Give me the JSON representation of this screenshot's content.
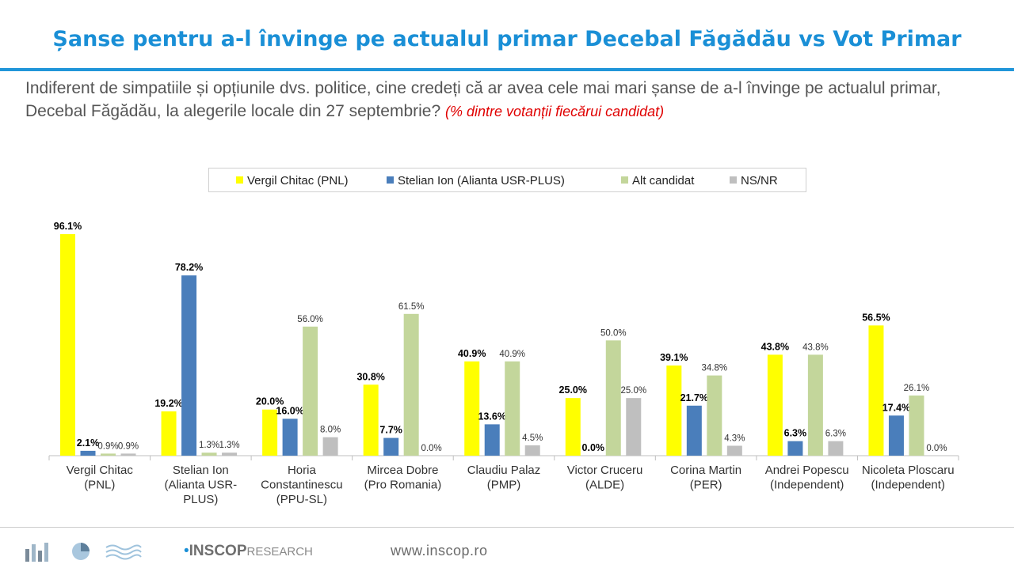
{
  "title": "Șanse pentru a-l învinge pe actualul primar Decebal Făgădău vs Vot Primar",
  "question": "Indiferent de simpatiile și opțiunile dvs. politice, cine credeți că ar avea cele mai mari șanse de a-l învinge pe actualul primar, Decebal Făgădău, la alegerile locale din 27 septembrie?",
  "question_note": "(% dintre votanții fiecărui candidat)",
  "footer": {
    "website": "www.inscop.ro",
    "logo_brand": "INSCOP",
    "logo_suffix": "RESEARCH"
  },
  "colors": {
    "title": "#1a8fd6",
    "rule": "#2196d9",
    "note": "#e00000"
  },
  "chart_data": {
    "type": "bar",
    "legend_position": "top",
    "grid": false,
    "ylim": [
      0,
      100
    ],
    "categories": [
      [
        "Vergil Chitac",
        "(PNL)"
      ],
      [
        "Stelian Ion",
        "(Alianta USR-",
        "PLUS)"
      ],
      [
        "Horia",
        "Constantinescu",
        "(PPU-SL)"
      ],
      [
        "Mircea Dobre",
        "(Pro Romania)"
      ],
      [
        "Claudiu Palaz",
        "(PMP)"
      ],
      [
        "Victor Cruceru",
        "(ALDE)"
      ],
      [
        "Corina Martin",
        "(PER)"
      ],
      [
        "Andrei Popescu",
        "(Independent)"
      ],
      [
        "Nicoleta Ploscaru",
        "(Independent)"
      ]
    ],
    "series": [
      {
        "name": "Vergil Chitac (PNL)",
        "color": "#ffff00",
        "bold": true,
        "values": [
          96.1,
          19.2,
          20.0,
          30.8,
          40.9,
          25.0,
          39.1,
          43.8,
          56.5
        ]
      },
      {
        "name": "Stelian Ion (Alianta USR-PLUS)",
        "color": "#4a7ebb",
        "bold": true,
        "values": [
          2.1,
          78.2,
          16.0,
          7.7,
          13.6,
          0.0,
          21.7,
          6.3,
          17.4
        ]
      },
      {
        "name": "Alt candidat",
        "color": "#c3d69b",
        "bold": false,
        "values": [
          0.9,
          1.3,
          56.0,
          61.5,
          40.9,
          50.0,
          34.8,
          43.8,
          26.1
        ]
      },
      {
        "name": "NS/NR",
        "color": "#bfbfbf",
        "bold": false,
        "values": [
          0.9,
          1.3,
          8.0,
          0.0,
          4.5,
          25.0,
          4.3,
          6.3,
          0.0
        ]
      }
    ],
    "value_suffix": "%"
  }
}
